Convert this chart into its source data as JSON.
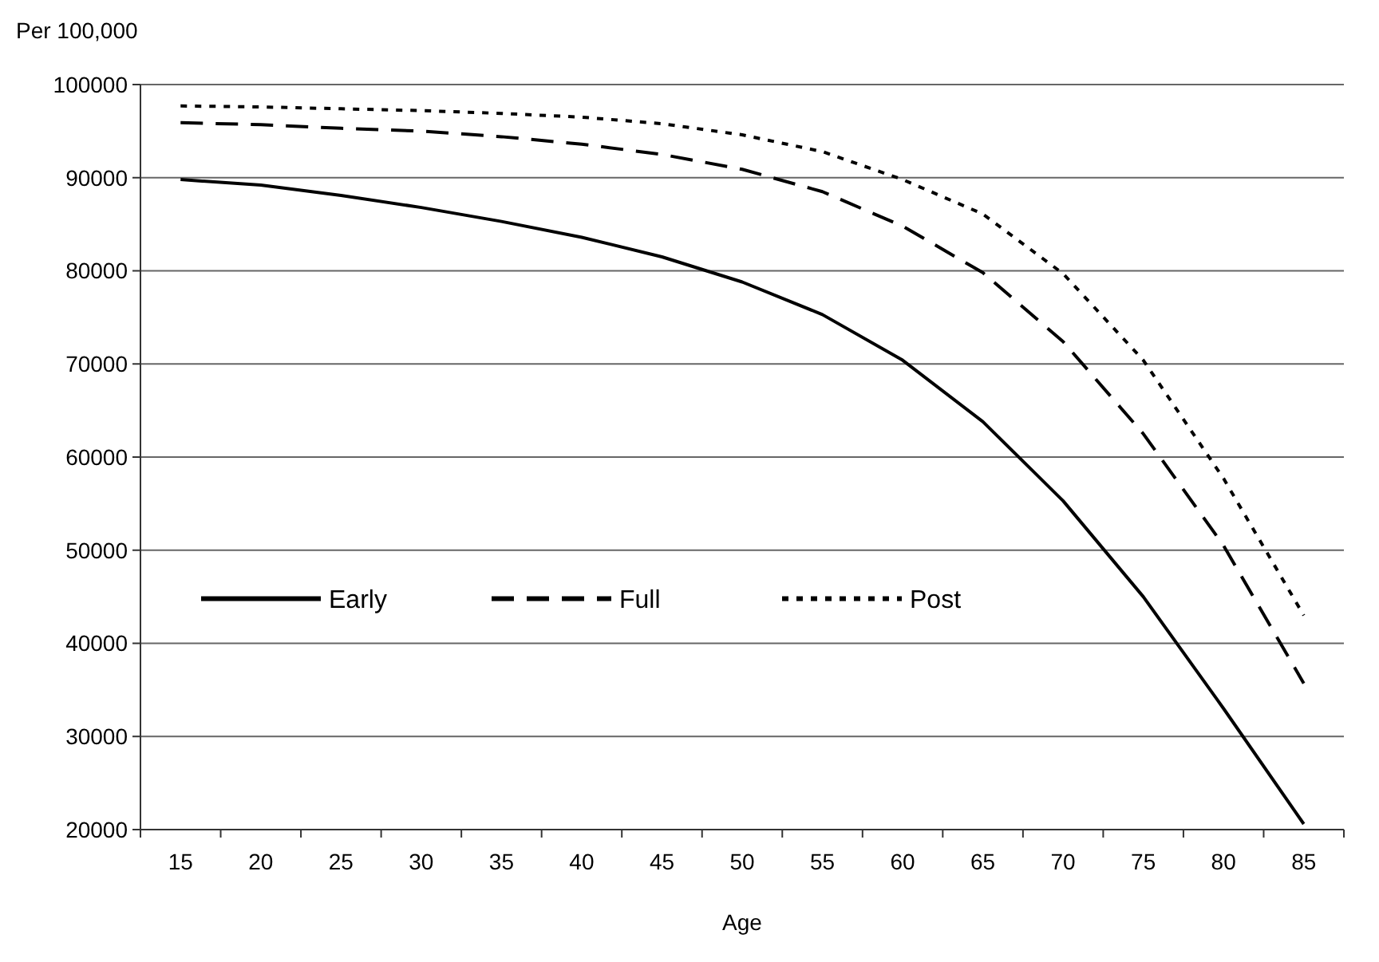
{
  "chart_data": {
    "type": "line",
    "ylabel": "Per 100,000",
    "xlabel": "Age",
    "categories": [
      "15",
      "20",
      "25",
      "30",
      "35",
      "40",
      "45",
      "50",
      "55",
      "60",
      "65",
      "70",
      "75",
      "80",
      "85"
    ],
    "ylim": [
      20000,
      100000
    ],
    "yticks": [
      20000,
      30000,
      40000,
      50000,
      60000,
      70000,
      80000,
      90000,
      100000
    ],
    "grid": "y",
    "legend": "bottom left",
    "series": [
      {
        "name": "Early",
        "color": "#000000",
        "line_style": "solid",
        "values": [
          89800,
          89200,
          88100,
          86800,
          85300,
          83600,
          81500,
          78800,
          75300,
          70400,
          63800,
          55300,
          45000,
          33000,
          20600
        ]
      },
      {
        "name": "Full",
        "color": "#000000",
        "line_style": "dashed",
        "values": [
          95900,
          95700,
          95300,
          95000,
          94400,
          93600,
          92500,
          90900,
          88500,
          84800,
          79800,
          72400,
          62500,
          50500,
          35700
        ]
      },
      {
        "name": "Post",
        "color": "#000000",
        "line_style": "dotted",
        "values": [
          97700,
          97600,
          97400,
          97200,
          96900,
          96500,
          95800,
          94600,
          92800,
          89800,
          86100,
          79700,
          70400,
          57700,
          43000
        ]
      }
    ]
  }
}
